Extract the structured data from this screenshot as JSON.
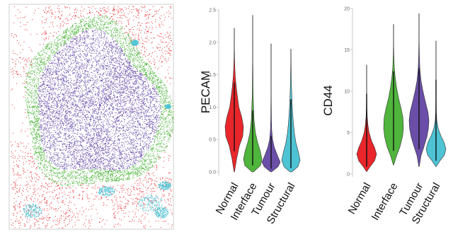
{
  "colors": {
    "Normal": "#e8262b",
    "Interface": "#4fb53c",
    "Tumour": "#6a4ea8",
    "Structural": "#4ec3d4"
  },
  "chart_data": [
    {
      "type": "scatter",
      "panel": "tissue-map",
      "description_free": true,
      "categories": [
        "Normal",
        "Interface",
        "Tumour",
        "Structural"
      ],
      "grid": false,
      "legend": "none"
    },
    {
      "type": "violin",
      "categories": [
        "Normal",
        "Interface",
        "Tumour",
        "Structural"
      ],
      "ylabel": "PECAM",
      "ylim": [
        0,
        2.5
      ],
      "yticks": [
        "0.0",
        "0.5",
        "1.0",
        "1.5",
        "2.0",
        "2.5"
      ],
      "ytick_values": [
        0,
        0.5,
        1.0,
        1.5,
        2.0,
        2.5
      ],
      "grid": false,
      "series": [
        {
          "name": "Normal",
          "min": 0.0,
          "max": 2.22,
          "box_q1": 0.32,
          "box_q3": 1.38,
          "profile": [
            [
              0.0,
              0.02
            ],
            [
              0.2,
              0.25
            ],
            [
              0.4,
              0.55
            ],
            [
              0.55,
              0.92
            ],
            [
              0.7,
              1.0
            ],
            [
              0.85,
              0.8
            ],
            [
              1.0,
              0.5
            ],
            [
              1.15,
              0.35
            ],
            [
              1.3,
              0.22
            ],
            [
              1.45,
              0.12
            ],
            [
              1.6,
              0.06
            ],
            [
              1.75,
              0.03
            ],
            [
              1.9,
              0.015
            ],
            [
              2.05,
              0.008
            ],
            [
              2.22,
              0.0
            ]
          ]
        },
        {
          "name": "Interface",
          "min": 0.0,
          "max": 2.42,
          "box_q1": 0.1,
          "box_q3": 0.95,
          "profile": [
            [
              0.0,
              0.08
            ],
            [
              0.1,
              0.85
            ],
            [
              0.2,
              1.0
            ],
            [
              0.32,
              0.82
            ],
            [
              0.45,
              0.55
            ],
            [
              0.6,
              0.3
            ],
            [
              0.8,
              0.15
            ],
            [
              1.0,
              0.09
            ],
            [
              1.2,
              0.05
            ],
            [
              1.45,
              0.03
            ],
            [
              1.7,
              0.015
            ],
            [
              2.0,
              0.008
            ],
            [
              2.42,
              0.0
            ]
          ]
        },
        {
          "name": "Tumour",
          "min": 0.0,
          "max": 1.98,
          "box_q1": 0.05,
          "box_q3": 0.55,
          "profile": [
            [
              0.0,
              0.05
            ],
            [
              0.08,
              0.75
            ],
            [
              0.15,
              1.0
            ],
            [
              0.25,
              0.7
            ],
            [
              0.38,
              0.35
            ],
            [
              0.5,
              0.16
            ],
            [
              0.65,
              0.07
            ],
            [
              0.8,
              0.04
            ],
            [
              1.0,
              0.02
            ],
            [
              1.3,
              0.01
            ],
            [
              1.6,
              0.005
            ],
            [
              1.98,
              0.0
            ]
          ]
        },
        {
          "name": "Structural",
          "min": 0.0,
          "max": 1.9,
          "box_q1": 0.06,
          "box_q3": 1.12,
          "profile": [
            [
              0.0,
              0.1
            ],
            [
              0.08,
              0.75
            ],
            [
              0.18,
              1.0
            ],
            [
              0.3,
              0.82
            ],
            [
              0.45,
              0.55
            ],
            [
              0.6,
              0.38
            ],
            [
              0.75,
              0.27
            ],
            [
              0.9,
              0.19
            ],
            [
              1.05,
              0.13
            ],
            [
              1.2,
              0.09
            ],
            [
              1.4,
              0.05
            ],
            [
              1.6,
              0.025
            ],
            [
              1.9,
              0.0
            ]
          ]
        }
      ]
    },
    {
      "type": "violin",
      "categories": [
        "Normal",
        "Interface",
        "Tumour",
        "Structural"
      ],
      "ylabel": "CD44",
      "ylim": [
        0,
        20
      ],
      "yticks": [
        "0",
        "5",
        "10",
        "15",
        "20"
      ],
      "ytick_values": [
        0,
        5,
        10,
        15,
        20
      ],
      "grid": false,
      "series": [
        {
          "name": "Normal",
          "min": 0.3,
          "max": 13.2,
          "box_q1": 0.9,
          "box_q3": 9.7,
          "profile": [
            [
              0.3,
              0.02
            ],
            [
              0.9,
              0.35
            ],
            [
              1.6,
              0.8
            ],
            [
              2.4,
              1.0
            ],
            [
              3.2,
              0.8
            ],
            [
              4.0,
              0.5
            ],
            [
              5.0,
              0.25
            ],
            [
              6.0,
              0.12
            ],
            [
              7.0,
              0.06
            ],
            [
              8.0,
              0.03
            ],
            [
              9.5,
              0.015
            ],
            [
              11.0,
              0.008
            ],
            [
              13.2,
              0.0
            ]
          ]
        },
        {
          "name": "Interface",
          "min": 1.1,
          "max": 18.1,
          "box_q1": 2.8,
          "box_q3": 12.4,
          "profile": [
            [
              1.1,
              0.02
            ],
            [
              2.2,
              0.3
            ],
            [
              3.3,
              0.65
            ],
            [
              4.5,
              0.9
            ],
            [
              5.5,
              1.0
            ],
            [
              6.8,
              0.95
            ],
            [
              8.0,
              0.75
            ],
            [
              9.2,
              0.5
            ],
            [
              10.5,
              0.3
            ],
            [
              11.8,
              0.16
            ],
            [
              13.0,
              0.07
            ],
            [
              14.5,
              0.03
            ],
            [
              16.0,
              0.01
            ],
            [
              18.1,
              0.0
            ]
          ]
        },
        {
          "name": "Tumour",
          "min": 0.9,
          "max": 19.4,
          "box_q1": 3.0,
          "box_q3": 12.8,
          "profile": [
            [
              0.9,
              0.02
            ],
            [
              2.2,
              0.2
            ],
            [
              3.3,
              0.5
            ],
            [
              4.5,
              0.8
            ],
            [
              5.5,
              0.95
            ],
            [
              6.5,
              1.0
            ],
            [
              7.5,
              0.9
            ],
            [
              8.7,
              0.65
            ],
            [
              10.0,
              0.4
            ],
            [
              11.3,
              0.2
            ],
            [
              12.6,
              0.09
            ],
            [
              14.0,
              0.04
            ],
            [
              16.0,
              0.015
            ],
            [
              19.4,
              0.0
            ]
          ]
        },
        {
          "name": "Structural",
          "min": 0.9,
          "max": 16.1,
          "box_q1": 1.6,
          "box_q3": 11.4,
          "profile": [
            [
              0.9,
              0.02
            ],
            [
              1.6,
              0.4
            ],
            [
              2.3,
              0.85
            ],
            [
              3.0,
              1.0
            ],
            [
              3.8,
              0.82
            ],
            [
              4.6,
              0.5
            ],
            [
              5.5,
              0.22
            ],
            [
              6.5,
              0.08
            ],
            [
              7.5,
              0.03
            ],
            [
              9.0,
              0.015
            ],
            [
              11.0,
              0.008
            ],
            [
              13.5,
              0.004
            ],
            [
              16.1,
              0.0
            ]
          ]
        }
      ]
    }
  ]
}
